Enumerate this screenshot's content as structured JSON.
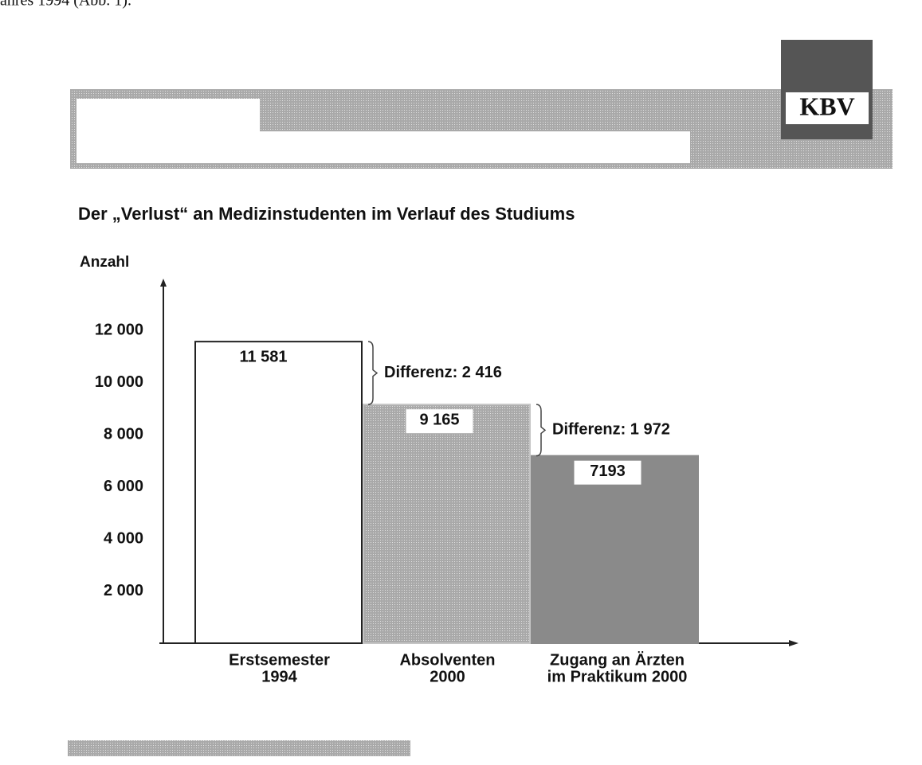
{
  "top_text": "ahres 1994 (Abb. 1).",
  "logo": "KBV",
  "chart_data": {
    "type": "bar",
    "title": "Der „Verlust“ an Medizinstudenten im Verlauf des Studiums",
    "y_axis_label": "Anzahl",
    "categories": [
      [
        "Erstsemester",
        "1994"
      ],
      [
        "Absolventen",
        "2000"
      ],
      [
        "Zugang an Ärzten",
        "im Praktikum 2000"
      ]
    ],
    "values": [
      11581,
      9165,
      7193
    ],
    "value_labels": [
      "11 581",
      "9 165",
      "7193"
    ],
    "colors": [
      "#ffffff",
      "#c4c4c4",
      "#8a8a8a"
    ],
    "ylim": [
      0,
      14000
    ],
    "yticks": [
      {
        "value": 2000,
        "label": "2 000"
      },
      {
        "value": 4000,
        "label": "4 000"
      },
      {
        "value": 6000,
        "label": "6 000"
      },
      {
        "value": 8000,
        "label": "8 000"
      },
      {
        "value": 10000,
        "label": "10 000"
      },
      {
        "value": 12000,
        "label": "12 000"
      }
    ],
    "annotations": [
      "Differenz: 2 416",
      "Differenz: 1 972"
    ],
    "grid": false
  }
}
